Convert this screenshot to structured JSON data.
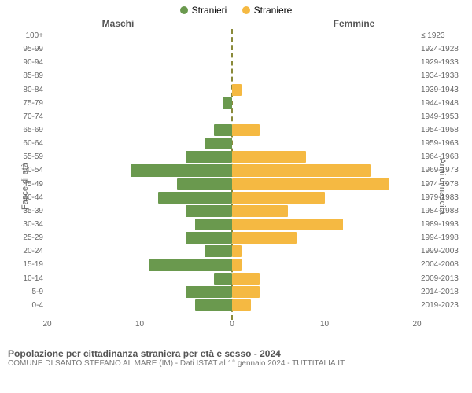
{
  "legend": {
    "male": {
      "label": "Stranieri",
      "color": "#6a994e"
    },
    "female": {
      "label": "Straniere",
      "color": "#f5b942"
    }
  },
  "column_titles": {
    "left": "Maschi",
    "right": "Femmine"
  },
  "y_axis_left_title": "Fasce di età",
  "y_axis_right_title": "Anni di nascita",
  "center_line_color": "#8a8a3a",
  "chart": {
    "type": "bar-pyramid",
    "x_max": 20,
    "x_ticks": [
      20,
      10,
      0,
      10,
      20
    ],
    "rows": [
      {
        "age": "100+",
        "birth": "≤ 1923",
        "m": 0,
        "f": 0
      },
      {
        "age": "95-99",
        "birth": "1924-1928",
        "m": 0,
        "f": 0
      },
      {
        "age": "90-94",
        "birth": "1929-1933",
        "m": 0,
        "f": 0
      },
      {
        "age": "85-89",
        "birth": "1934-1938",
        "m": 0,
        "f": 0
      },
      {
        "age": "80-84",
        "birth": "1939-1943",
        "m": 0,
        "f": 1
      },
      {
        "age": "75-79",
        "birth": "1944-1948",
        "m": 1,
        "f": 0
      },
      {
        "age": "70-74",
        "birth": "1949-1953",
        "m": 0,
        "f": 0
      },
      {
        "age": "65-69",
        "birth": "1954-1958",
        "m": 2,
        "f": 3
      },
      {
        "age": "60-64",
        "birth": "1959-1963",
        "m": 3,
        "f": 0
      },
      {
        "age": "55-59",
        "birth": "1964-1968",
        "m": 5,
        "f": 8
      },
      {
        "age": "50-54",
        "birth": "1969-1973",
        "m": 11,
        "f": 15
      },
      {
        "age": "45-49",
        "birth": "1974-1978",
        "m": 6,
        "f": 17
      },
      {
        "age": "40-44",
        "birth": "1979-1983",
        "m": 8,
        "f": 10
      },
      {
        "age": "35-39",
        "birth": "1984-1988",
        "m": 5,
        "f": 6
      },
      {
        "age": "30-34",
        "birth": "1989-1993",
        "m": 4,
        "f": 12
      },
      {
        "age": "25-29",
        "birth": "1994-1998",
        "m": 5,
        "f": 7
      },
      {
        "age": "20-24",
        "birth": "1999-2003",
        "m": 3,
        "f": 1
      },
      {
        "age": "15-19",
        "birth": "2004-2008",
        "m": 9,
        "f": 1
      },
      {
        "age": "10-14",
        "birth": "2009-2013",
        "m": 2,
        "f": 3
      },
      {
        "age": "5-9",
        "birth": "2014-2018",
        "m": 5,
        "f": 3
      },
      {
        "age": "0-4",
        "birth": "2019-2023",
        "m": 4,
        "f": 2
      }
    ]
  },
  "footer": {
    "title": "Popolazione per cittadinanza straniera per età e sesso - 2024",
    "subtitle": "COMUNE DI SANTO STEFANO AL MARE (IM) - Dati ISTAT al 1° gennaio 2024 - TUTTITALIA.IT"
  },
  "colors": {
    "bg": "#ffffff",
    "text": "#666666"
  }
}
